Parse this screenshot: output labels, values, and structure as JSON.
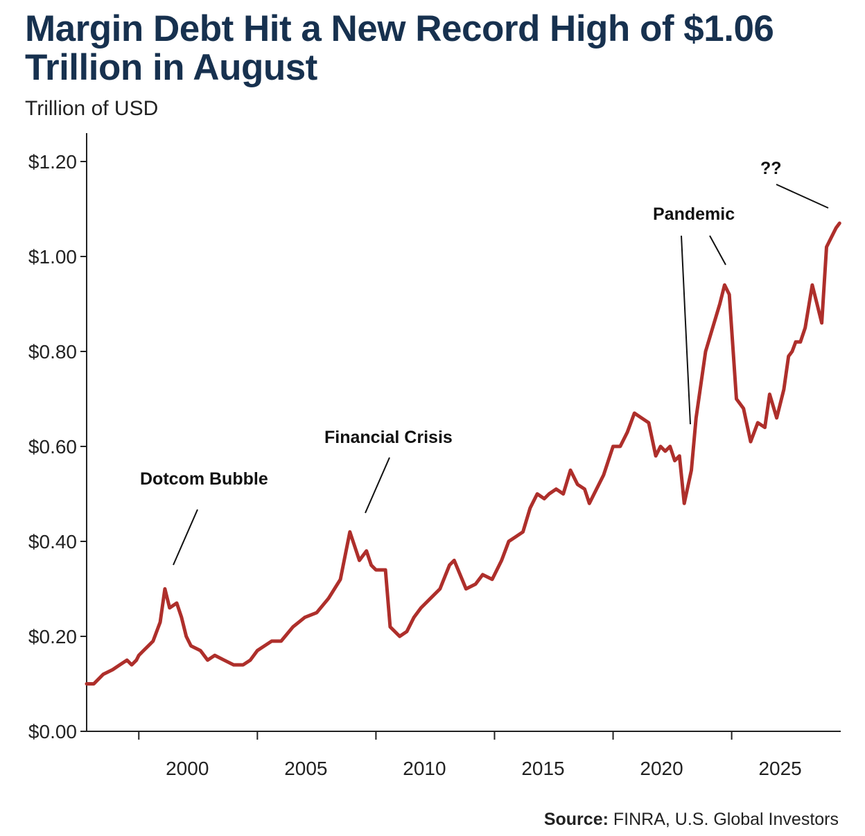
{
  "title": "Margin Debt Hit a New Record High of $1.06 Trillion in August",
  "unit_label": "Trillion of USD",
  "source": {
    "label": "Source:",
    "text": "FINRA, U.S. Global Investors"
  },
  "colors": {
    "line": "#ae2f2b",
    "title": "#17314f",
    "axis": "#222222"
  },
  "chart_data": {
    "type": "line",
    "title": "Margin Debt Hit a New Record High of $1.06 Trillion in August",
    "ylabel": "Trillion of USD",
    "xlabel": "",
    "xlim": [
      1995.8,
      2027.6
    ],
    "ylim": [
      0,
      1.25
    ],
    "y_ticks": [
      0,
      0.2,
      0.4,
      0.6,
      0.8,
      1.0,
      1.2
    ],
    "y_tick_labels": [
      "$0.00",
      "$0.20",
      "$0.40",
      "$0.60",
      "$0.80",
      "$1.00",
      "$1.20"
    ],
    "x_tick_positions": [
      1998,
      2003,
      2008,
      2013,
      2018,
      2023
    ],
    "x_tick_labels": [
      "2000",
      "2005",
      "2010",
      "2015",
      "2020",
      "2025"
    ],
    "grid": false,
    "series": [
      {
        "x": [
          1995.8,
          1996.1,
          1996.5,
          1996.9,
          1997.2,
          1997.5,
          1997.7,
          1997.9,
          1998.0,
          1998.2,
          1998.4,
          1998.6,
          1998.9,
          1999.1,
          1999.3,
          1999.6,
          1999.8,
          2000.0,
          2000.2,
          2000.6,
          2000.9,
          2001.2,
          2001.6,
          2002.0,
          2002.4,
          2002.7,
          2003.0,
          2003.3,
          2003.6,
          2004.0,
          2004.5,
          2005.0,
          2005.5,
          2006.0,
          2006.5,
          2006.9,
          2007.3,
          2007.6,
          2007.8,
          2008.0,
          2008.2,
          2008.4,
          2008.6,
          2009.0,
          2009.3,
          2009.6,
          2009.9,
          2010.3,
          2010.7,
          2011.1,
          2011.3,
          2011.8,
          2012.2,
          2012.5,
          2012.9,
          2013.3,
          2013.6,
          2013.9,
          2014.2,
          2014.5,
          2014.8,
          2015.1,
          2015.3,
          2015.6,
          2015.9,
          2016.2,
          2016.5,
          2016.8,
          2017.0,
          2017.3,
          2017.6,
          2017.8,
          2018.0,
          2018.3,
          2018.6,
          2018.9,
          2019.2,
          2019.5,
          2019.8,
          2020.0,
          2020.2,
          2020.4,
          2020.6,
          2020.8,
          2021.0,
          2021.3,
          2021.5,
          2021.9,
          2022.2,
          2022.5,
          2022.7,
          2022.9,
          2023.2,
          2023.5,
          2023.8,
          2024.1,
          2024.4,
          2024.6,
          2024.9,
          2025.2,
          2025.4,
          2025.55,
          2025.7,
          2025.9,
          2026.1,
          2026.4,
          2026.6,
          2026.8,
          2027.0,
          2027.2,
          2027.4,
          2027.55
        ],
        "values": [
          0.1,
          0.1,
          0.12,
          0.13,
          0.14,
          0.15,
          0.14,
          0.15,
          0.16,
          0.17,
          0.18,
          0.19,
          0.23,
          0.3,
          0.26,
          0.27,
          0.24,
          0.2,
          0.18,
          0.17,
          0.15,
          0.16,
          0.15,
          0.14,
          0.14,
          0.15,
          0.17,
          0.18,
          0.19,
          0.19,
          0.22,
          0.24,
          0.25,
          0.28,
          0.32,
          0.42,
          0.36,
          0.38,
          0.35,
          0.34,
          0.34,
          0.34,
          0.22,
          0.2,
          0.21,
          0.24,
          0.26,
          0.28,
          0.3,
          0.35,
          0.36,
          0.3,
          0.31,
          0.33,
          0.32,
          0.36,
          0.4,
          0.41,
          0.42,
          0.47,
          0.5,
          0.49,
          0.5,
          0.51,
          0.5,
          0.55,
          0.52,
          0.51,
          0.48,
          0.51,
          0.54,
          0.57,
          0.6,
          0.6,
          0.63,
          0.67,
          0.66,
          0.65,
          0.58,
          0.6,
          0.59,
          0.6,
          0.57,
          0.58,
          0.48,
          0.55,
          0.66,
          0.8,
          0.85,
          0.9,
          0.94,
          0.92,
          0.7,
          0.68,
          0.61,
          0.65,
          0.64,
          0.71,
          0.66,
          0.72,
          0.79,
          0.8,
          0.82,
          0.82,
          0.85,
          0.94,
          0.9,
          0.86,
          1.02,
          1.04,
          1.06,
          1.07
        ]
      }
    ],
    "annotations": [
      {
        "text": "Dotcom Bubble",
        "x": 1999.1,
        "y": 0.3
      },
      {
        "text": "Financial Crisis",
        "x": 2007.0,
        "y": 0.42
      },
      {
        "text": "Pandemic",
        "x": 2020.7,
        "y": 0.48
      },
      {
        "text": "Pandemic",
        "x": 2022.7,
        "y": 0.94
      },
      {
        "text": "??",
        "x": 2027.5,
        "y": 1.07
      }
    ]
  }
}
